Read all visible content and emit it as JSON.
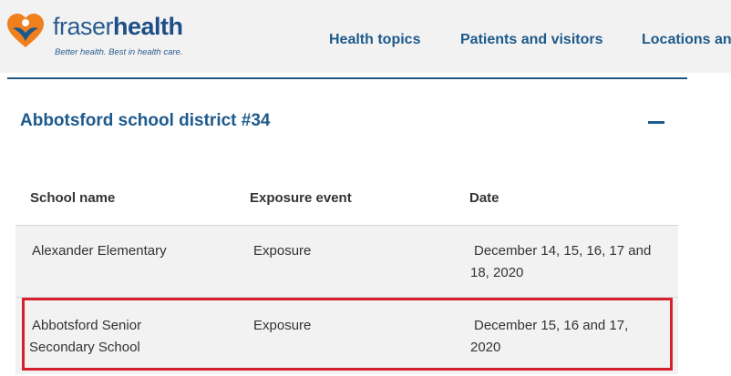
{
  "brand": {
    "logo_part1": "fraser",
    "logo_part2": "health",
    "tagline": "Better health. Best in health care.",
    "logo_icon": "heart-person-icon",
    "colors": {
      "orange": "#f07f1d",
      "blue": "#1d5a8c"
    }
  },
  "nav": {
    "items": [
      "Health topics",
      "Patients and visitors",
      "Locations an"
    ]
  },
  "accordion": {
    "title": "Abbotsford school district #34",
    "toggle_icon": "minus-icon"
  },
  "table": {
    "headers": [
      "School name",
      "Exposure event",
      "Date"
    ],
    "rows": [
      {
        "school": "Alexander Elementary",
        "event": "Exposure",
        "date_line1": "December 14, 15, 16, 17 and",
        "date_line2": "18, 2020"
      },
      {
        "school_line1": "Abbotsford Senior",
        "school_line2": "Secondary School",
        "event": "Exposure",
        "date_line1": "December 15, 16 and 17,",
        "date_line2": "2020"
      }
    ]
  },
  "highlight_color": "#d6202e"
}
